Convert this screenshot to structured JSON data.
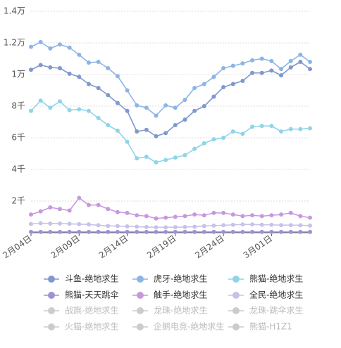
{
  "chart_data": {
    "type": "line",
    "categories": [
      "2月04日",
      "2月05日",
      "2月06日",
      "2月07日",
      "2月08日",
      "2月09日",
      "2月10日",
      "2月11日",
      "2月12日",
      "2月13日",
      "2月14日",
      "2月15日",
      "2月16日",
      "2月17日",
      "2月18日",
      "2月19日",
      "2月20日",
      "2月21日",
      "2月22日",
      "2月23日",
      "2月24日",
      "2月25日",
      "2月26日",
      "2月27日",
      "2月28日",
      "3月01日",
      "3月02日",
      "3月03日",
      "3月04日",
      "3月05日"
    ],
    "x_tick_labels": [
      "2月04日",
      "2月09日",
      "2月14日",
      "2月19日",
      "2月24日",
      "3月01日"
    ],
    "y_tick_labels": [
      "2千",
      "4千",
      "6千",
      "8千",
      "1万",
      "1.2万",
      "1.4万"
    ],
    "y_ticks": [
      2000,
      4000,
      6000,
      8000,
      10000,
      12000,
      14000
    ],
    "ylim": [
      0,
      14000
    ],
    "grid": "horizontal-dashed",
    "legend_position": "bottom",
    "series": [
      {
        "name": "斗鱼-绝地求生",
        "color": "#7f98cf",
        "visible": true,
        "values": [
          10300,
          10600,
          10450,
          10400,
          10050,
          9850,
          9400,
          9150,
          8700,
          8200,
          7700,
          6400,
          6500,
          6100,
          6300,
          6800,
          7150,
          7700,
          8000,
          8600,
          9200,
          9400,
          9600,
          10100,
          10100,
          10250,
          9950,
          10450,
          10800,
          10350
        ]
      },
      {
        "name": "虎牙-绝地求生",
        "color": "#8cb4e6",
        "visible": true,
        "values": [
          11750,
          12050,
          11650,
          11900,
          11700,
          11250,
          10750,
          10800,
          10400,
          9900,
          9000,
          8050,
          7900,
          7400,
          8050,
          7900,
          8400,
          9150,
          9400,
          9850,
          10400,
          10550,
          10700,
          10900,
          11000,
          10850,
          10350,
          10850,
          11250,
          10800
        ]
      },
      {
        "name": "熊猫-绝地求生",
        "color": "#8fd4e8",
        "visible": true,
        "values": [
          7700,
          8350,
          7900,
          8300,
          7750,
          7800,
          7700,
          7250,
          6800,
          6450,
          5750,
          4700,
          4800,
          4450,
          4600,
          4750,
          4900,
          5300,
          5650,
          5900,
          6000,
          6400,
          6250,
          6700,
          6750,
          6750,
          6400,
          6550,
          6550,
          6600
        ]
      },
      {
        "name": "熊猫-天天跳伞",
        "color": "#9b93d6",
        "visible": true,
        "values": [
          50,
          50,
          50,
          50,
          50,
          50,
          50,
          50,
          50,
          50,
          50,
          50,
          50,
          50,
          50,
          50,
          50,
          50,
          50,
          50,
          50,
          50,
          50,
          50,
          50,
          50,
          50,
          50,
          50,
          50
        ]
      },
      {
        "name": "触手-绝地求生",
        "color": "#c897e0",
        "visible": true,
        "values": [
          1150,
          1350,
          1600,
          1500,
          1400,
          2200,
          1750,
          1750,
          1500,
          1300,
          1250,
          1100,
          1050,
          900,
          950,
          1000,
          1050,
          1150,
          1100,
          1250,
          1250,
          1150,
          1050,
          1100,
          1050,
          1100,
          1150,
          1250,
          1050,
          950
        ]
      },
      {
        "name": "全民-绝地求生",
        "color": "#c7c3e8",
        "visible": true,
        "values": [
          550,
          600,
          580,
          580,
          560,
          540,
          520,
          470,
          430,
          420,
          400,
          380,
          360,
          340,
          340,
          350,
          360,
          380,
          420,
          450,
          470,
          500,
          520,
          520,
          500,
          500,
          480,
          480,
          470,
          450
        ]
      },
      {
        "name": "战旗-绝地求生",
        "color": "#cccccc",
        "visible": false
      },
      {
        "name": "龙珠-绝地求生",
        "color": "#cccccc",
        "visible": false
      },
      {
        "name": "龙珠-跳伞求生",
        "color": "#cccccc",
        "visible": false
      },
      {
        "name": "火猫-绝地求生",
        "color": "#cccccc",
        "visible": false
      },
      {
        "name": "企鹅电竞-绝地求生",
        "color": "#cccccc",
        "visible": false
      },
      {
        "name": "熊猫-H1Z1",
        "color": "#cccccc",
        "visible": false
      }
    ]
  }
}
